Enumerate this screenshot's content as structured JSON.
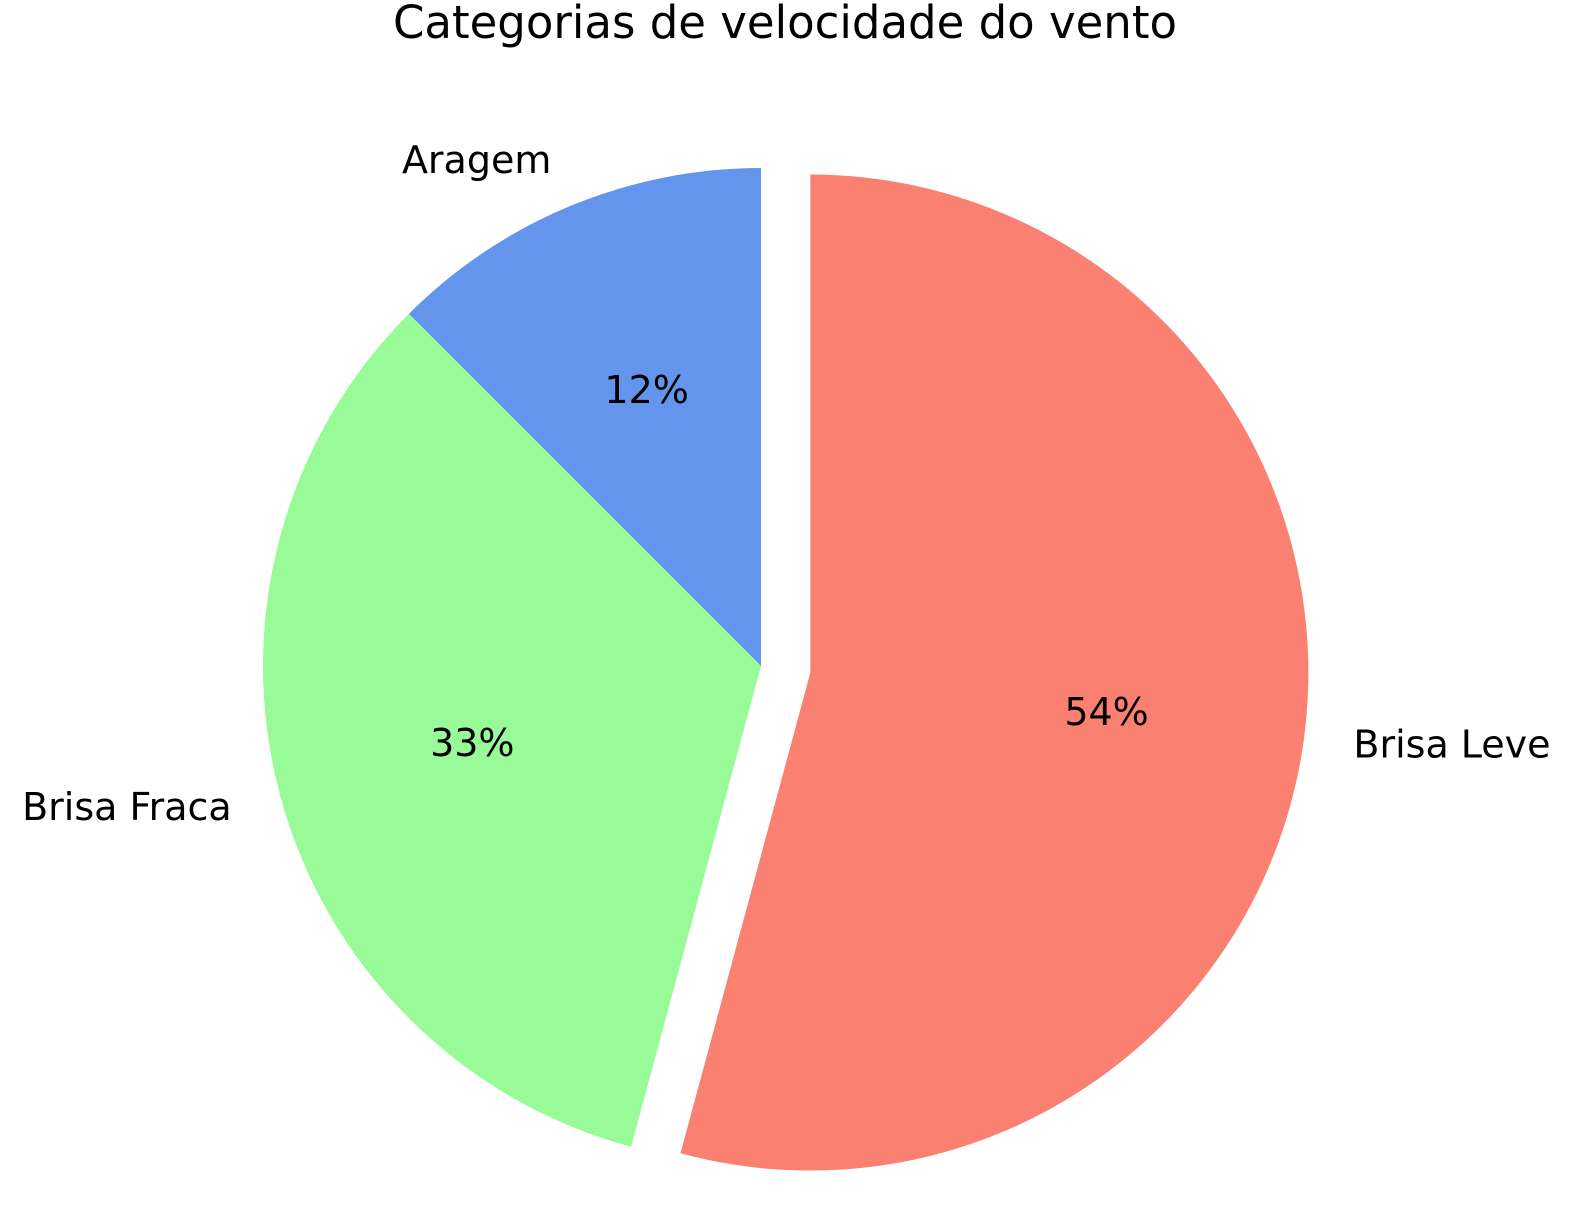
{
  "chart_data": {
    "type": "pie",
    "title": "Categorias de velocidade do vento",
    "start_angle_deg": 90,
    "direction": "counterclockwise",
    "slices": [
      {
        "label": "Aragem",
        "value": 12.5,
        "pct_label": "12%",
        "color": "#6495ED",
        "explode": 0
      },
      {
        "label": "Brisa Fraca",
        "value": 33.3,
        "pct_label": "33%",
        "color": "#98FB98",
        "explode": 0
      },
      {
        "label": "Brisa Leve",
        "value": 54.2,
        "pct_label": "54%",
        "color": "#FA8072",
        "explode": 0.1
      }
    ]
  }
}
